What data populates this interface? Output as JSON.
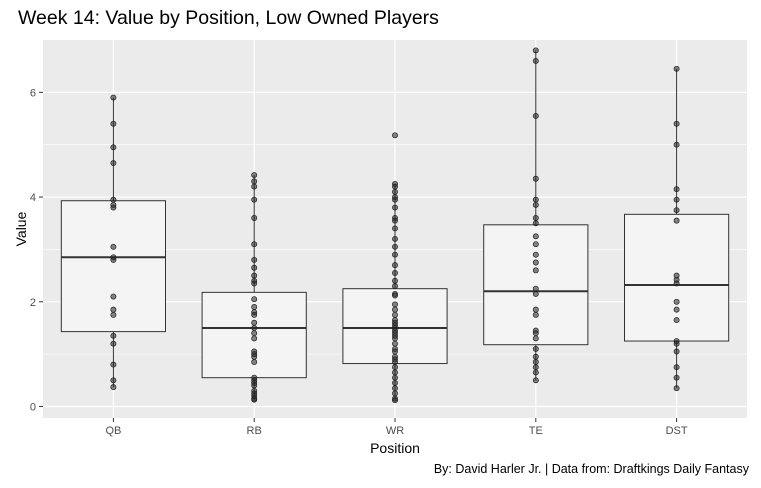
{
  "chart_data": {
    "type": "boxplot",
    "title": "Week 14: Value by Position, Low Owned Players",
    "caption": "By: David Harler Jr. | Data from: Draftkings Daily Fantasy",
    "xlabel": "Position",
    "ylabel": "Value",
    "ylim": [
      -0.22,
      7.0
    ],
    "yticks": [
      0,
      2,
      4,
      6
    ],
    "grid": true,
    "theme_colors": {
      "panel": "#ebebeb",
      "grid": "#ffffff",
      "box_fill": "#f4f4f4",
      "box_line": "#333333",
      "point": "#222222"
    },
    "categories": [
      "QB",
      "RB",
      "WR",
      "TE",
      "DST"
    ],
    "boxes": [
      {
        "category": "QB",
        "q1": 1.43,
        "median": 2.85,
        "q3": 3.93,
        "whisker_low": 0.37,
        "whisker_high": 5.9,
        "points": [
          5.9,
          5.4,
          4.95,
          4.65,
          3.95,
          3.85,
          3.8,
          3.05,
          2.85,
          2.8,
          2.1,
          1.85,
          1.75,
          1.35,
          1.2,
          0.8,
          0.5,
          0.37
        ]
      },
      {
        "category": "RB",
        "q1": 0.55,
        "median": 1.5,
        "q3": 2.18,
        "whisker_low": 0.13,
        "whisker_high": 4.42,
        "points": [
          4.42,
          4.3,
          4.2,
          3.95,
          3.6,
          3.1,
          2.8,
          2.65,
          2.5,
          2.4,
          2.35,
          2.05,
          1.9,
          1.8,
          1.75,
          1.6,
          1.5,
          1.4,
          1.3,
          1.05,
          1.0,
          0.95,
          0.85,
          0.55,
          0.5,
          0.45,
          0.4,
          0.3,
          0.25,
          0.2,
          0.15,
          0.13
        ]
      },
      {
        "category": "WR",
        "q1": 0.82,
        "median": 1.5,
        "q3": 2.25,
        "whisker_low": 0.12,
        "whisker_high": 4.25,
        "points": [
          5.18,
          4.25,
          4.2,
          4.1,
          4.0,
          3.95,
          3.8,
          3.6,
          3.55,
          3.4,
          3.2,
          3.05,
          2.9,
          2.7,
          2.55,
          2.4,
          2.3,
          2.15,
          2.12,
          1.95,
          1.85,
          1.75,
          1.65,
          1.6,
          1.55,
          1.5,
          1.45,
          1.4,
          1.35,
          1.3,
          1.2,
          1.1,
          1.05,
          0.95,
          0.9,
          0.85,
          0.75,
          0.65,
          0.55,
          0.45,
          0.35,
          0.25,
          0.15,
          0.12
        ]
      },
      {
        "category": "TE",
        "q1": 1.18,
        "median": 2.2,
        "q3": 3.47,
        "whisker_low": 0.5,
        "whisker_high": 6.8,
        "points": [
          6.8,
          6.6,
          5.55,
          4.35,
          3.95,
          3.85,
          3.6,
          3.5,
          3.25,
          3.1,
          2.9,
          2.75,
          2.6,
          2.25,
          2.15,
          1.85,
          1.75,
          1.45,
          1.4,
          1.3,
          1.1,
          0.95,
          0.85,
          0.75,
          0.65,
          0.5
        ]
      },
      {
        "category": "DST",
        "q1": 1.25,
        "median": 2.32,
        "q3": 3.67,
        "whisker_low": 0.35,
        "whisker_high": 6.45,
        "points": [
          6.45,
          5.4,
          5.0,
          4.15,
          3.95,
          3.75,
          3.55,
          2.5,
          2.42,
          2.35,
          2.0,
          1.85,
          1.65,
          1.25,
          1.2,
          1.05,
          0.75,
          0.55,
          0.35
        ]
      }
    ]
  }
}
